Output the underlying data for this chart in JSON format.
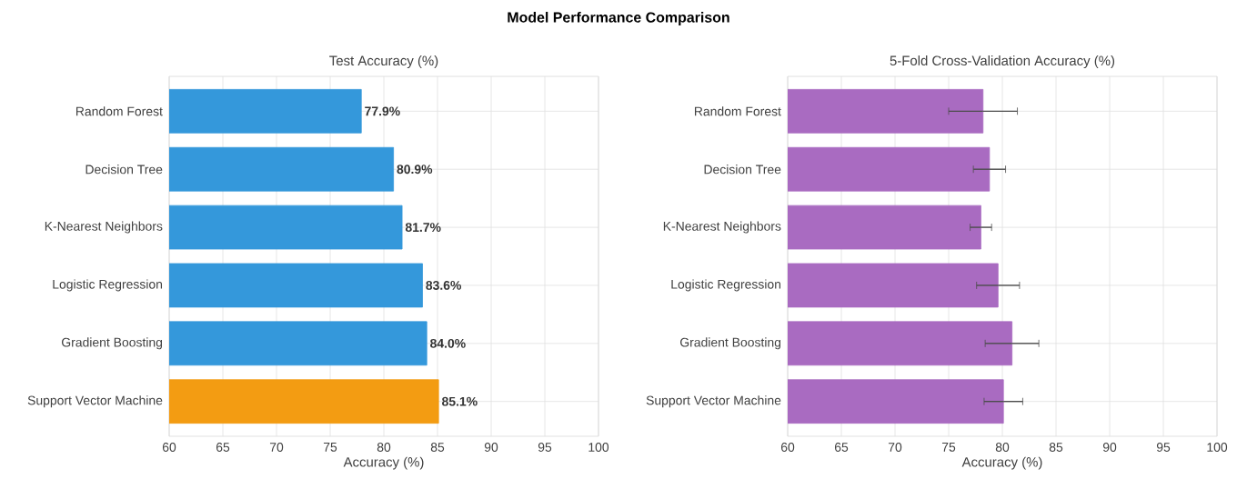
{
  "chart_data": [
    {
      "type": "bar",
      "title": "Model Performance Comparison",
      "subtitle": "Test Accuracy (%)",
      "xlabel": "Accuracy (%)",
      "orientation": "horizontal",
      "categories": [
        "Random Forest",
        "Decision Tree",
        "K-Nearest Neighbors",
        "Logistic Regression",
        "Gradient Boosting",
        "Support Vector Machine"
      ],
      "values": [
        77.9,
        80.9,
        81.7,
        83.6,
        84.0,
        85.1
      ],
      "colors": [
        "#3498db",
        "#3498db",
        "#3498db",
        "#3498db",
        "#3498db",
        "#f39c12"
      ],
      "value_labels": [
        "77.9%",
        "80.9%",
        "81.7%",
        "83.6%",
        "84.0%",
        "85.1%"
      ],
      "xlim": [
        60,
        100
      ],
      "xticks": [
        60,
        65,
        70,
        75,
        80,
        85,
        90,
        95,
        100
      ],
      "grid": true
    },
    {
      "type": "bar",
      "title": "5-Fold Cross-Validation Accuracy (%)",
      "xlabel": "Accuracy (%)",
      "orientation": "horizontal",
      "categories": [
        "Random Forest",
        "Decision Tree",
        "K-Nearest Neighbors",
        "Logistic Regression",
        "Gradient Boosting",
        "Support Vector Machine"
      ],
      "values": [
        78.2,
        78.8,
        78.0,
        79.6,
        80.9,
        80.1
      ],
      "errors": [
        3.2,
        1.5,
        1.0,
        2.0,
        2.5,
        1.8
      ],
      "color": "#a96bc1",
      "xlim": [
        60,
        100
      ],
      "xticks": [
        60,
        65,
        70,
        75,
        80,
        85,
        90,
        95,
        100
      ],
      "grid": true
    }
  ]
}
